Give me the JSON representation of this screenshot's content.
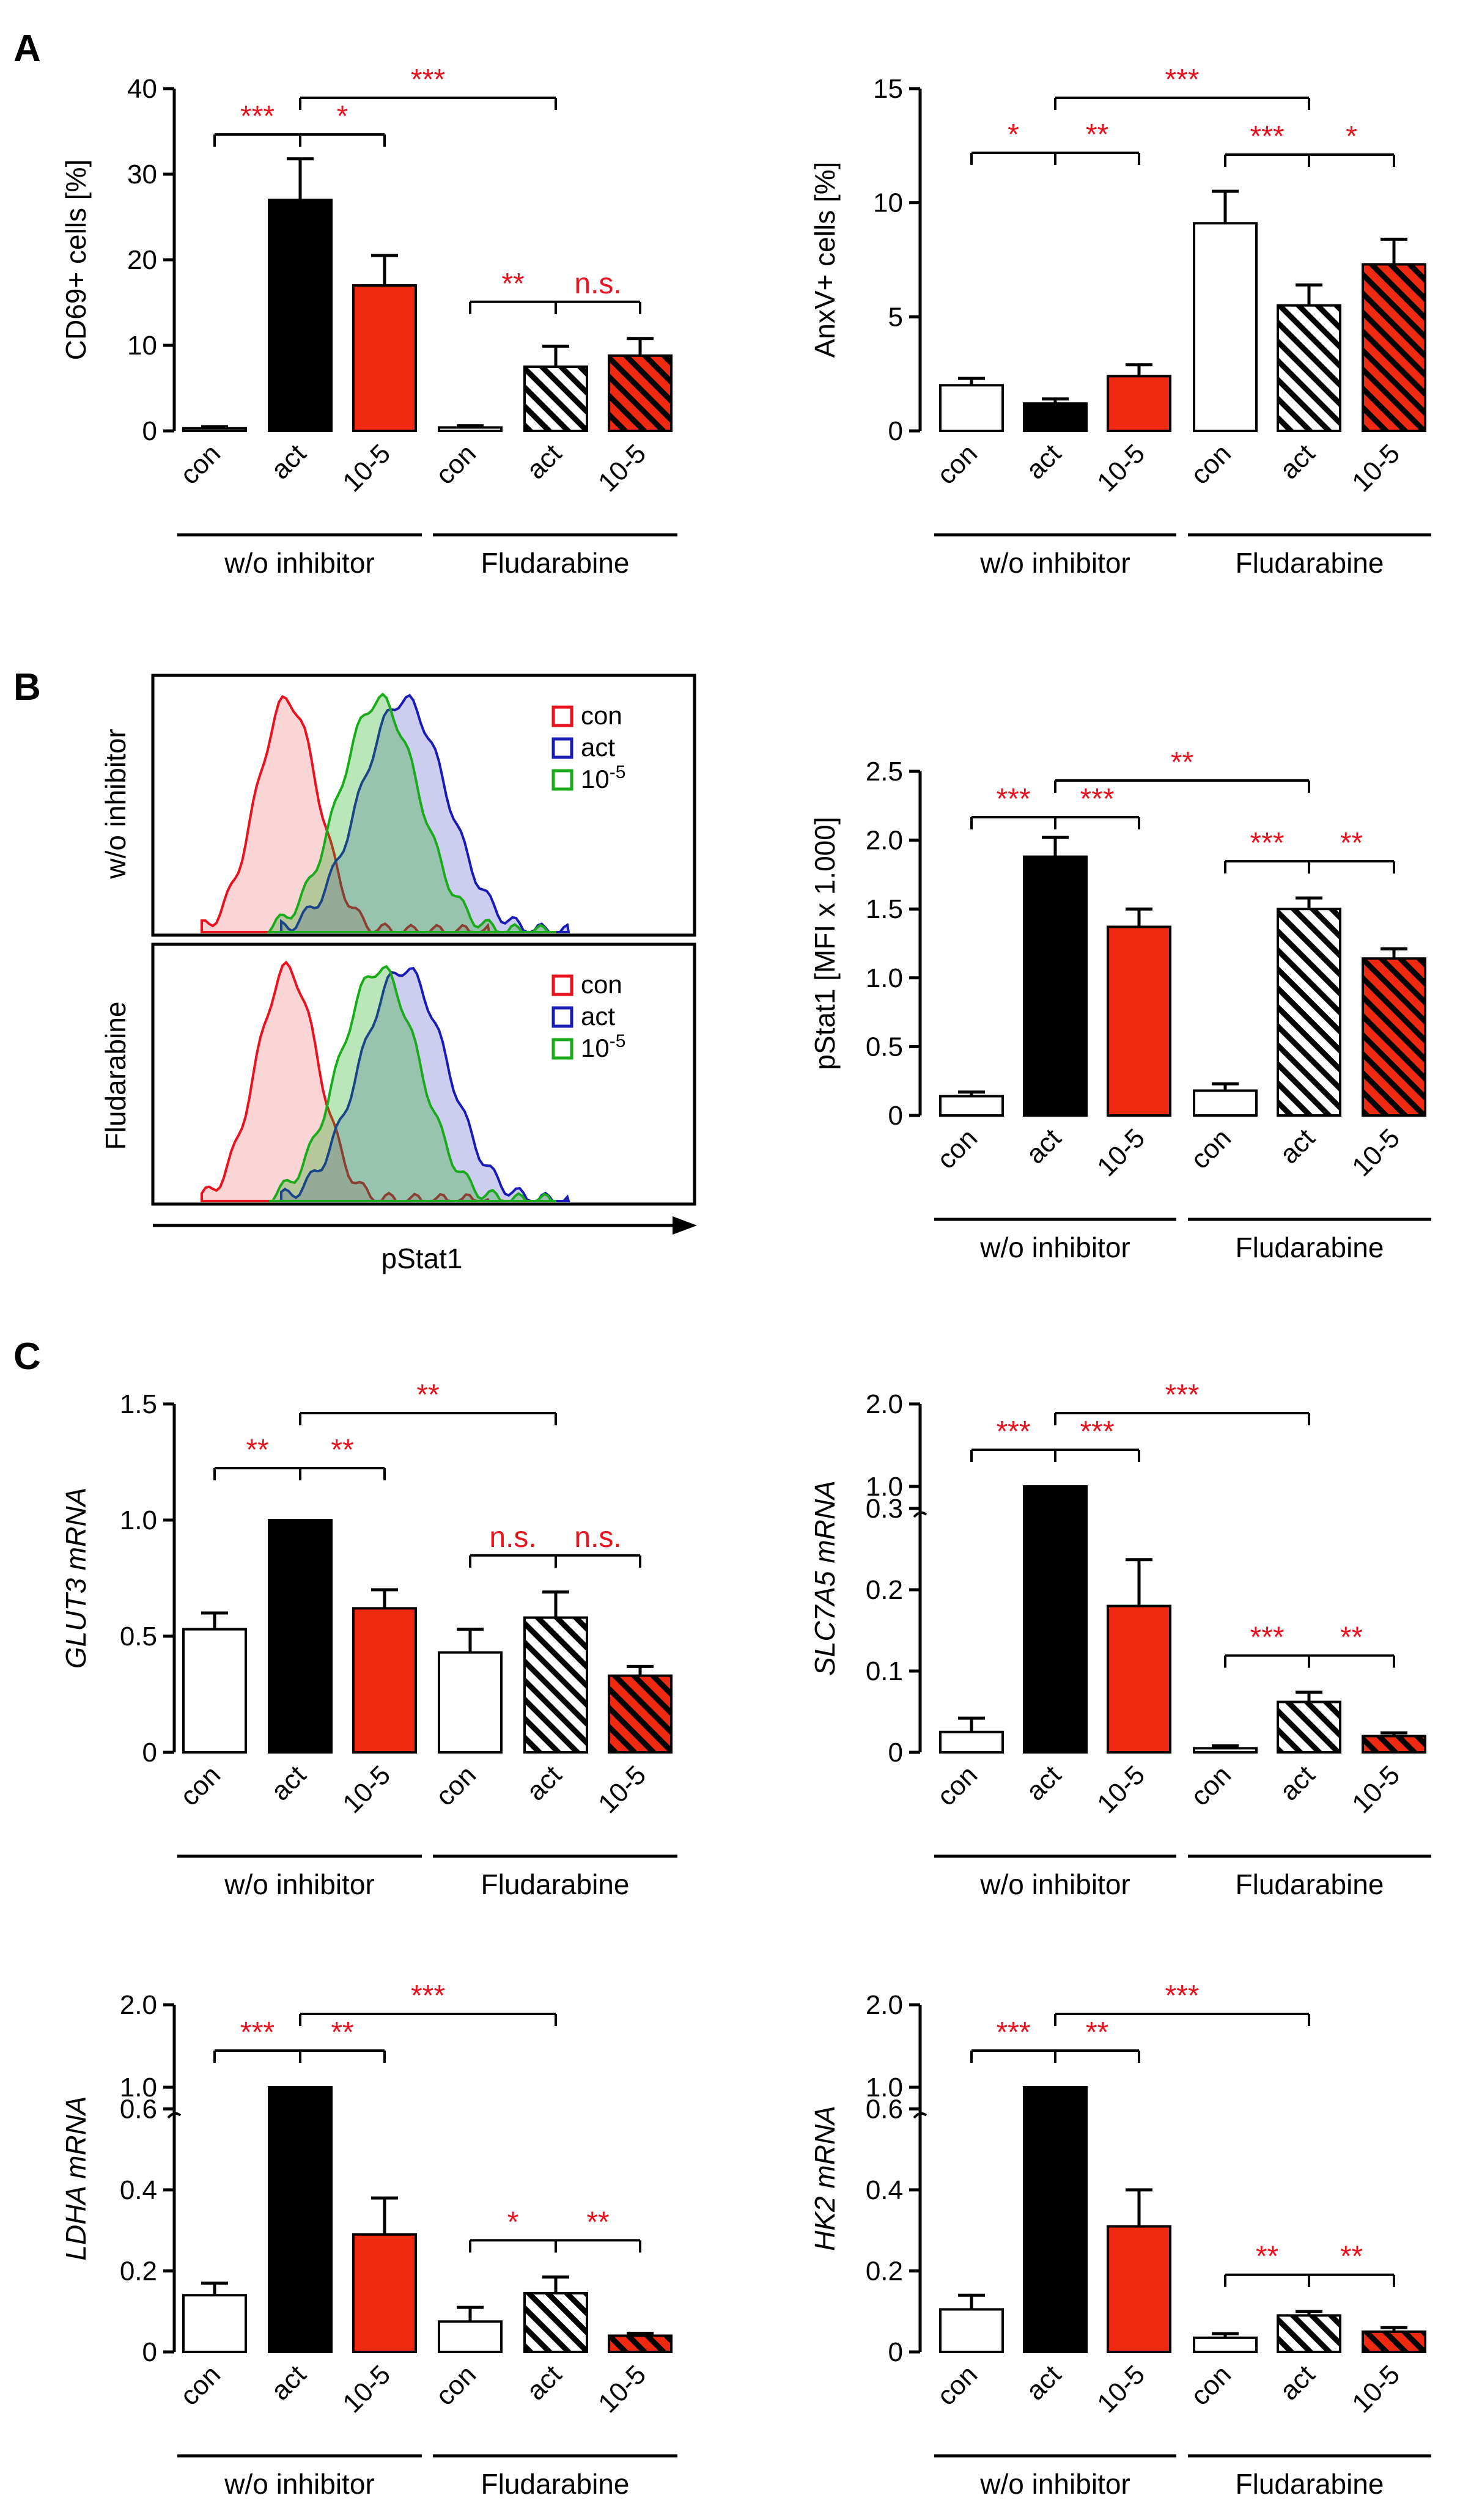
{
  "figure": {
    "panels": {
      "A": "A",
      "B": "B",
      "C": "C"
    },
    "groups": {
      "left": "w/o inhibitor",
      "right": "Fludarabine"
    },
    "categories": [
      "con",
      "act",
      "10-5"
    ],
    "colors": {
      "con": "#ffffff",
      "act": "#000000",
      "10-5": "#ef2a10",
      "significance": "#e8131e",
      "hist_con": "#e8131e",
      "hist_act": "#1a1ab8",
      "hist_10-5": "#1aab1a"
    }
  },
  "histograms": {
    "row1_label": "w/o inhibitor",
    "row2_label": "Fludarabine",
    "x_label": "pStat1",
    "legend": [
      {
        "name": "con",
        "color": "#e8131e"
      },
      {
        "name": "act",
        "color": "#1a1ab8"
      },
      {
        "name": "10",
        "exp": "-5",
        "color": "#1aab1a"
      }
    ]
  },
  "chart_data": [
    {
      "id": "A-left",
      "type": "bar",
      "ylabel": "CD69+ cells [%]",
      "yticks": [
        "0",
        "10",
        "20",
        "30",
        "40"
      ],
      "ylim": [
        0,
        40
      ],
      "categories": [
        "con",
        "act",
        "10-5",
        "con",
        "act",
        "10-5"
      ],
      "values": [
        0.3,
        27,
        17,
        0.4,
        7.5,
        8.8
      ],
      "errors": [
        0.2,
        4.8,
        3.5,
        0.2,
        2.4,
        2.0
      ],
      "significance": [
        {
          "from": "act",
          "to": "con",
          "label": "***"
        },
        {
          "from": "act",
          "to": "10-5",
          "label": "*"
        },
        {
          "from": "act",
          "to": "Fludarabine act",
          "label": "***"
        },
        {
          "from": "Fludarabine act",
          "to": "Fludarabine con",
          "label": "**"
        },
        {
          "from": "Fludarabine act",
          "to": "Fludarabine 10-5",
          "label": "n.s."
        }
      ]
    },
    {
      "id": "A-right",
      "type": "bar",
      "ylabel": "AnxV+ cells [%]",
      "yticks": [
        "0",
        "5",
        "10",
        "15"
      ],
      "ylim": [
        0,
        15
      ],
      "categories": [
        "con",
        "act",
        "10-5",
        "con",
        "act",
        "10-5"
      ],
      "values": [
        2.0,
        1.2,
        2.4,
        9.1,
        5.5,
        7.3
      ],
      "errors": [
        0.3,
        0.2,
        0.5,
        1.4,
        0.9,
        1.1
      ],
      "significance": [
        {
          "from": "act",
          "to": "con",
          "label": "*"
        },
        {
          "from": "act",
          "to": "10-5",
          "label": "**"
        },
        {
          "from": "act",
          "to": "Fludarabine act",
          "label": "***"
        },
        {
          "from": "Fludarabine act",
          "to": "Fludarabine con",
          "label": "***"
        },
        {
          "from": "Fludarabine act",
          "to": "Fludarabine 10-5",
          "label": "*"
        }
      ]
    },
    {
      "id": "B-right",
      "type": "bar",
      "ylabel": "pStat1 [MFI x 1.000]",
      "yticks": [
        "0",
        "0.5",
        "1.0",
        "1.5",
        "2.0",
        "2.5"
      ],
      "ylim": [
        0,
        2.5
      ],
      "categories": [
        "con",
        "act",
        "10-5",
        "con",
        "act",
        "10-5"
      ],
      "values": [
        0.14,
        1.88,
        1.37,
        0.18,
        1.5,
        1.14
      ],
      "errors": [
        0.03,
        0.14,
        0.13,
        0.05,
        0.08,
        0.07
      ],
      "significance": [
        {
          "from": "act",
          "to": "con",
          "label": "***"
        },
        {
          "from": "act",
          "to": "10-5",
          "label": "***"
        },
        {
          "from": "act",
          "to": "Fludarabine act",
          "label": "**"
        },
        {
          "from": "Fludarabine act",
          "to": "Fludarabine con",
          "label": "***"
        },
        {
          "from": "Fludarabine act",
          "to": "Fludarabine 10-5",
          "label": "**"
        }
      ]
    },
    {
      "id": "C-GLUT3",
      "type": "bar",
      "ylabel": "GLUT3 mRNA",
      "yticks": [
        "0",
        "0.5",
        "1.0",
        "1.5"
      ],
      "ylim": [
        0,
        1.5
      ],
      "categories": [
        "con",
        "act",
        "10-5",
        "con",
        "act",
        "10-5"
      ],
      "values": [
        0.53,
        1.0,
        0.62,
        0.43,
        0.58,
        0.33
      ],
      "errors": [
        0.07,
        0,
        0.08,
        0.1,
        0.11,
        0.04
      ],
      "significance": [
        {
          "from": "act",
          "to": "con",
          "label": "**"
        },
        {
          "from": "act",
          "to": "10-5",
          "label": "**"
        },
        {
          "from": "act",
          "to": "Fludarabine act",
          "label": "**"
        },
        {
          "from": "Fludarabine act",
          "to": "Fludarabine con",
          "label": "n.s."
        },
        {
          "from": "Fludarabine act",
          "to": "Fludarabine 10-5",
          "label": "n.s."
        }
      ]
    },
    {
      "id": "C-SLC7A5",
      "type": "bar",
      "broken_axis": true,
      "ylabel": "SLC7A5 mRNA",
      "yticks": [
        "0",
        "0.1",
        "0.2",
        "0.3",
        "1.0",
        "2.0"
      ],
      "ylim": [
        0,
        2.0
      ],
      "categories": [
        "con",
        "act",
        "10-5",
        "con",
        "act",
        "10-5"
      ],
      "values": [
        0.025,
        1.0,
        0.18,
        0.005,
        0.062,
        0.02
      ],
      "errors": [
        0.017,
        0,
        0.057,
        0.003,
        0.012,
        0.004
      ],
      "significance": [
        {
          "from": "act",
          "to": "con",
          "label": "***"
        },
        {
          "from": "act",
          "to": "10-5",
          "label": "***"
        },
        {
          "from": "act",
          "to": "Fludarabine act",
          "label": "***"
        },
        {
          "from": "Fludarabine act",
          "to": "Fludarabine con",
          "label": "***"
        },
        {
          "from": "Fludarabine act",
          "to": "Fludarabine 10-5",
          "label": "**"
        }
      ]
    },
    {
      "id": "C-LDHA",
      "type": "bar",
      "broken_axis": true,
      "ylabel": "LDHA mRNA",
      "yticks": [
        "0",
        "0.2",
        "0.4",
        "0.6",
        "1.0",
        "2.0"
      ],
      "ylim": [
        0,
        2.0
      ],
      "categories": [
        "con",
        "act",
        "10-5",
        "con",
        "act",
        "10-5"
      ],
      "values": [
        0.14,
        1.0,
        0.29,
        0.075,
        0.145,
        0.04
      ],
      "errors": [
        0.03,
        0,
        0.09,
        0.035,
        0.04,
        0.006
      ],
      "significance": [
        {
          "from": "act",
          "to": "con",
          "label": "***"
        },
        {
          "from": "act",
          "to": "10-5",
          "label": "**"
        },
        {
          "from": "act",
          "to": "Fludarabine act",
          "label": "***"
        },
        {
          "from": "Fludarabine act",
          "to": "Fludarabine con",
          "label": "*"
        },
        {
          "from": "Fludarabine act",
          "to": "Fludarabine 10-5",
          "label": "**"
        }
      ]
    },
    {
      "id": "C-HK2",
      "type": "bar",
      "broken_axis": true,
      "ylabel": "HK2 mRNA",
      "yticks": [
        "0",
        "0.2",
        "0.4",
        "0.6",
        "1.0",
        "2.0"
      ],
      "ylim": [
        0,
        2.0
      ],
      "categories": [
        "con",
        "act",
        "10-5",
        "con",
        "act",
        "10-5"
      ],
      "values": [
        0.105,
        1.0,
        0.31,
        0.035,
        0.09,
        0.05
      ],
      "errors": [
        0.035,
        0,
        0.09,
        0.01,
        0.01,
        0.01
      ],
      "significance": [
        {
          "from": "act",
          "to": "con",
          "label": "***"
        },
        {
          "from": "act",
          "to": "10-5",
          "label": "**"
        },
        {
          "from": "act",
          "to": "Fludarabine act",
          "label": "***"
        },
        {
          "from": "Fludarabine act",
          "to": "Fludarabine con",
          "label": "**"
        },
        {
          "from": "Fludarabine act",
          "to": "Fludarabine 10-5",
          "label": "**"
        }
      ]
    }
  ]
}
